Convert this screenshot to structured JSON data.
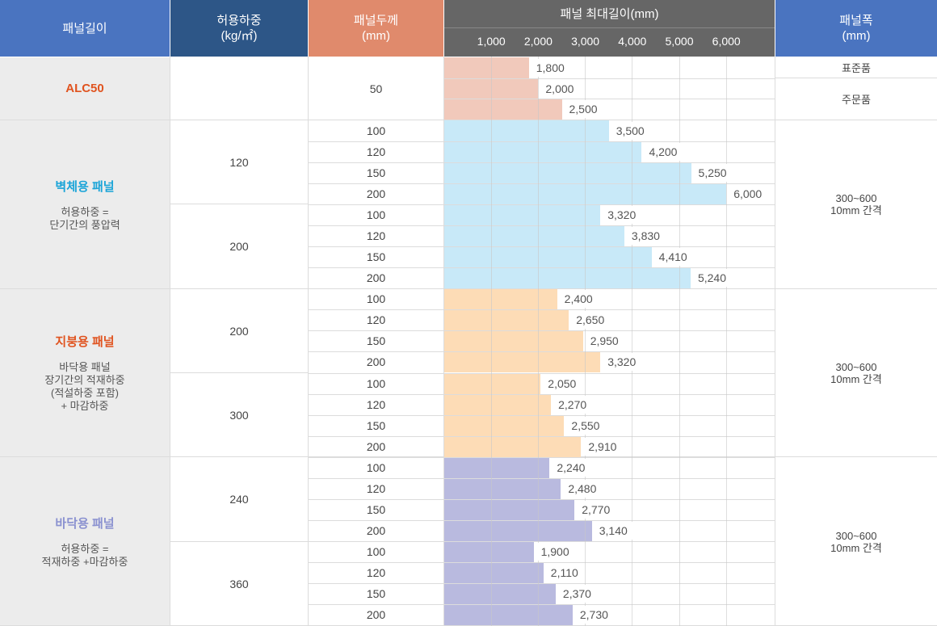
{
  "header": {
    "col_length": "패널길이",
    "col_load": [
      "허용하중",
      "(kg/㎡)"
    ],
    "col_thickness": [
      "패널두께",
      "(mm)"
    ],
    "col_maxlen": "패널 최대길이(mm)",
    "col_width": [
      "패널폭",
      "(mm)"
    ]
  },
  "colors": {
    "hdr_blue": "#4a74c0",
    "hdr_navy": "#2d5687",
    "hdr_salmon": "#e08a6c",
    "hdr_gray": "#666666",
    "alc_bar": "#f1c9bb",
    "wall_bar": "#c8e9f8",
    "roof_bar": "#fddcb6",
    "floor_bar": "#b9badf",
    "left_bg": "#ececec"
  },
  "categories": [
    {
      "title": "ALC50",
      "desc": [],
      "color": "#e0531f"
    },
    {
      "title": "벽체용 패널",
      "desc": [
        "허용하중 =",
        "단기간의 풍압력"
      ],
      "color": "#1aa4d8"
    },
    {
      "title": "지붕용 패널",
      "desc": [
        "바닥용 패널",
        "장기간의 적재하중",
        "(적설하중 포함)",
        "+ 마감하중"
      ],
      "color": "#e0531f"
    },
    {
      "title": "바닥용 패널",
      "desc": [
        "허용하중 =",
        "적재하중 +마감하중"
      ],
      "color": "#8a91d0"
    }
  ],
  "loads": [
    "120",
    "200",
    "200",
    "300",
    "240",
    "360"
  ],
  "width_notes": [
    {
      "label": "표준품"
    },
    {
      "label": "주문품"
    },
    {
      "label": [
        "300~600",
        "10mm 간격"
      ]
    },
    {
      "label": [
        "300~600",
        "10mm 간격"
      ]
    },
    {
      "label": [
        "300~600",
        "10mm 간격"
      ]
    }
  ],
  "chart_data": {
    "type": "bar",
    "orientation": "horizontal",
    "title": "패널 최대길이(mm)",
    "xticks": [
      "1,000",
      "2,000",
      "3,000",
      "4,000",
      "5,000",
      "6,000"
    ],
    "xlim": [
      0,
      7000
    ],
    "rows": [
      {
        "group": "ALC50",
        "thickness": "50",
        "value": 1800,
        "label": "1,800"
      },
      {
        "group": "ALC50",
        "thickness": "",
        "value": 2000,
        "label": "2,000"
      },
      {
        "group": "ALC50",
        "thickness": "",
        "value": 2500,
        "label": "2,500"
      },
      {
        "group": "벽체용 패널",
        "load": "120",
        "thickness": "100",
        "value": 3500,
        "label": "3,500"
      },
      {
        "group": "벽체용 패널",
        "load": "120",
        "thickness": "120",
        "value": 4200,
        "label": "4,200"
      },
      {
        "group": "벽체용 패널",
        "load": "120",
        "thickness": "150",
        "value": 5250,
        "label": "5,250"
      },
      {
        "group": "벽체용 패널",
        "load": "120",
        "thickness": "200",
        "value": 6000,
        "label": "6,000"
      },
      {
        "group": "벽체용 패널",
        "load": "200",
        "thickness": "100",
        "value": 3320,
        "label": "3,320"
      },
      {
        "group": "벽체용 패널",
        "load": "200",
        "thickness": "120",
        "value": 3830,
        "label": "3,830"
      },
      {
        "group": "벽체용 패널",
        "load": "200",
        "thickness": "150",
        "value": 4410,
        "label": "4,410"
      },
      {
        "group": "벽체용 패널",
        "load": "200",
        "thickness": "200",
        "value": 5240,
        "label": "5,240"
      },
      {
        "group": "지붕용 패널",
        "load": "200",
        "thickness": "100",
        "value": 2400,
        "label": "2,400"
      },
      {
        "group": "지붕용 패널",
        "load": "200",
        "thickness": "120",
        "value": 2650,
        "label": "2,650"
      },
      {
        "group": "지붕용 패널",
        "load": "200",
        "thickness": "150",
        "value": 2950,
        "label": "2,950"
      },
      {
        "group": "지붕용 패널",
        "load": "200",
        "thickness": "200",
        "value": 3320,
        "label": "3,320"
      },
      {
        "group": "지붕용 패널",
        "load": "300",
        "thickness": "100",
        "value": 2050,
        "label": "2,050"
      },
      {
        "group": "지붕용 패널",
        "load": "300",
        "thickness": "120",
        "value": 2270,
        "label": "2,270"
      },
      {
        "group": "지붕용 패널",
        "load": "300",
        "thickness": "150",
        "value": 2550,
        "label": "2,550"
      },
      {
        "group": "지붕용 패널",
        "load": "300",
        "thickness": "200",
        "value": 2910,
        "label": "2,910"
      },
      {
        "group": "바닥용 패널",
        "load": "240",
        "thickness": "100",
        "value": 2240,
        "label": "2,240"
      },
      {
        "group": "바닥용 패널",
        "load": "240",
        "thickness": "120",
        "value": 2480,
        "label": "2,480"
      },
      {
        "group": "바닥용 패널",
        "load": "240",
        "thickness": "150",
        "value": 2770,
        "label": "2,770"
      },
      {
        "group": "바닥용 패널",
        "load": "240",
        "thickness": "200",
        "value": 3140,
        "label": "3,140"
      },
      {
        "group": "바닥용 패널",
        "load": "360",
        "thickness": "100",
        "value": 1900,
        "label": "1,900"
      },
      {
        "group": "바닥용 패널",
        "load": "360",
        "thickness": "120",
        "value": 2110,
        "label": "2,110"
      },
      {
        "group": "바닥용 패널",
        "load": "360",
        "thickness": "150",
        "value": 2370,
        "label": "2,370"
      },
      {
        "group": "바닥용 패널",
        "load": "360",
        "thickness": "200",
        "value": 2730,
        "label": "2,730"
      }
    ]
  }
}
